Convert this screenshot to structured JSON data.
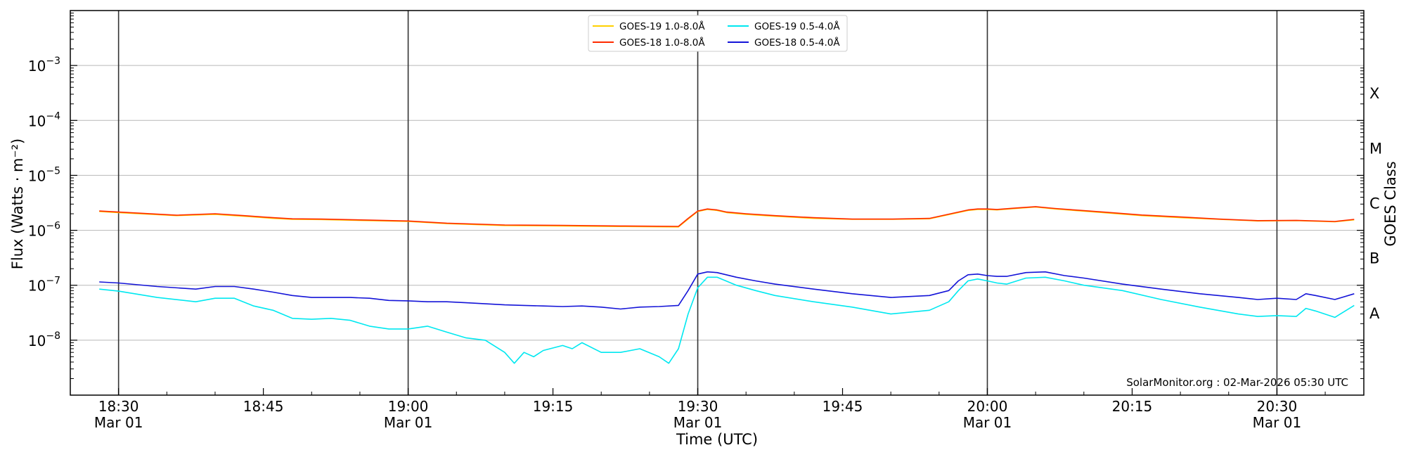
{
  "chart_data": {
    "type": "line",
    "title": "",
    "xlabel": "Time (UTC)",
    "ylabel": "Flux (Watts · m⁻²)",
    "right_label": "GOES Class",
    "credit": "SolarMonitor.org : 02-Mar-2026 05:30 UTC",
    "y_scale": "log",
    "ylim": [
      1e-09,
      0.01
    ],
    "x_range_minutes": [
      -5,
      129
    ],
    "grid": "horizontal at decades, vertical at each half hour",
    "legend_position": "top-center",
    "x_ticks": [
      {
        "minute": 0,
        "label": "18:30",
        "date": "Mar 01"
      },
      {
        "minute": 15,
        "label": "18:45",
        "date": ""
      },
      {
        "minute": 30,
        "label": "19:00",
        "date": "Mar 01"
      },
      {
        "minute": 45,
        "label": "19:15",
        "date": ""
      },
      {
        "minute": 60,
        "label": "19:30",
        "date": "Mar 01"
      },
      {
        "minute": 75,
        "label": "19:45",
        "date": ""
      },
      {
        "minute": 90,
        "label": "20:00",
        "date": "Mar 01"
      },
      {
        "minute": 105,
        "label": "20:15",
        "date": ""
      },
      {
        "minute": 120,
        "label": "20:30",
        "date": "Mar 01"
      }
    ],
    "y_ticks": [
      {
        "exp": -8,
        "label": "10",
        "sup": "−8"
      },
      {
        "exp": -7,
        "label": "10",
        "sup": "−7"
      },
      {
        "exp": -6,
        "label": "10",
        "sup": "−6"
      },
      {
        "exp": -5,
        "label": "10",
        "sup": "−5"
      },
      {
        "exp": -4,
        "label": "10",
        "sup": "−4"
      },
      {
        "exp": -3,
        "label": "10",
        "sup": "−3"
      }
    ],
    "goes_classes": [
      {
        "label": "A",
        "exp": -7.5
      },
      {
        "label": "B",
        "exp": -6.5
      },
      {
        "label": "C",
        "exp": -5.5
      },
      {
        "label": "M",
        "exp": -4.5
      },
      {
        "label": "X",
        "exp": -3.5
      }
    ],
    "series": [
      {
        "name": "GOES-19 1.0-8.0Å",
        "color": "#ffd000",
        "x": [
          -2,
          0,
          6,
          10,
          13,
          16,
          18,
          21,
          26,
          30,
          34,
          40,
          46,
          52,
          58,
          59,
          60,
          61,
          62,
          63,
          65,
          68,
          72,
          76,
          80,
          84,
          88,
          89,
          90,
          91,
          93,
          95,
          97,
          99,
          102,
          106,
          110,
          114,
          118,
          122,
          126,
          128
        ],
        "y": [
          2.2e-06,
          2.1e-06,
          1.85e-06,
          1.95e-06,
          1.8e-06,
          1.65e-06,
          1.58e-06,
          1.57e-06,
          1.5e-06,
          1.45e-06,
          1.32e-06,
          1.22e-06,
          1.2e-06,
          1.17e-06,
          1.15e-06,
          1.6e-06,
          2.2e-06,
          2.4e-06,
          2.3e-06,
          2.1e-06,
          1.95e-06,
          1.8e-06,
          1.65e-06,
          1.58e-06,
          1.58e-06,
          1.62e-06,
          2.3e-06,
          2.4e-06,
          2.4e-06,
          2.35e-06,
          2.5e-06,
          2.65e-06,
          2.45e-06,
          2.3e-06,
          2.1e-06,
          1.85e-06,
          1.7e-06,
          1.58e-06,
          1.48e-06,
          1.5e-06,
          1.43e-06,
          1.55e-06
        ]
      },
      {
        "name": "GOES-18 1.0-8.0Å",
        "color": "#ff2a00",
        "x": [
          -2,
          0,
          6,
          10,
          13,
          16,
          18,
          21,
          26,
          30,
          34,
          40,
          46,
          52,
          58,
          59,
          60,
          61,
          62,
          63,
          65,
          68,
          72,
          76,
          80,
          84,
          88,
          89,
          90,
          91,
          93,
          95,
          97,
          99,
          102,
          106,
          110,
          114,
          118,
          122,
          126,
          128
        ],
        "y": [
          2.25e-06,
          2.15e-06,
          1.88e-06,
          2e-06,
          1.85e-06,
          1.7e-06,
          1.62e-06,
          1.6e-06,
          1.53e-06,
          1.48e-06,
          1.35e-06,
          1.25e-06,
          1.23e-06,
          1.2e-06,
          1.18e-06,
          1.65e-06,
          2.25e-06,
          2.45e-06,
          2.35e-06,
          2.15e-06,
          2e-06,
          1.85e-06,
          1.7e-06,
          1.6e-06,
          1.6e-06,
          1.65e-06,
          2.35e-06,
          2.45e-06,
          2.45e-06,
          2.4e-06,
          2.55e-06,
          2.7e-06,
          2.5e-06,
          2.35e-06,
          2.15e-06,
          1.9e-06,
          1.75e-06,
          1.6e-06,
          1.5e-06,
          1.52e-06,
          1.45e-06,
          1.58e-06
        ]
      },
      {
        "name": "GOES-19 0.5-4.0Å",
        "color": "#00e8f0",
        "x": [
          -2,
          0,
          4,
          8,
          10,
          12,
          14,
          16,
          18,
          20,
          22,
          24,
          26,
          28,
          30,
          32,
          34,
          36,
          38,
          40,
          41,
          42,
          43,
          44,
          46,
          47,
          48,
          50,
          52,
          54,
          56,
          57,
          58,
          59,
          60,
          61,
          62,
          64,
          66,
          68,
          72,
          76,
          80,
          84,
          86,
          87,
          88,
          89,
          90,
          91,
          92,
          94,
          96,
          98,
          100,
          104,
          108,
          112,
          116,
          118,
          120,
          122,
          123,
          124,
          126,
          128
        ],
        "y": [
          8.5e-08,
          7.8e-08,
          6e-08,
          5e-08,
          5.8e-08,
          5.8e-08,
          4.2e-08,
          3.5e-08,
          2.5e-08,
          2.4e-08,
          2.5e-08,
          2.3e-08,
          1.8e-08,
          1.6e-08,
          1.6e-08,
          1.8e-08,
          1.4e-08,
          1.1e-08,
          1e-08,
          6e-09,
          3.8e-09,
          6e-09,
          5e-09,
          6.5e-09,
          8e-09,
          7e-09,
          9e-09,
          6e-09,
          6e-09,
          7e-09,
          5e-09,
          3.8e-09,
          7e-09,
          3e-08,
          9e-08,
          1.4e-07,
          1.4e-07,
          1e-07,
          8e-08,
          6.5e-08,
          5e-08,
          4e-08,
          3e-08,
          3.5e-08,
          5e-08,
          8e-08,
          1.2e-07,
          1.3e-07,
          1.2e-07,
          1.1e-07,
          1.05e-07,
          1.35e-07,
          1.4e-07,
          1.2e-07,
          1e-07,
          8e-08,
          5.5e-08,
          4e-08,
          3e-08,
          2.7e-08,
          2.8e-08,
          2.7e-08,
          3.8e-08,
          3.4e-08,
          2.6e-08,
          4.3e-08
        ]
      },
      {
        "name": "GOES-18 0.5-4.0Å",
        "color": "#1414d8",
        "x": [
          -2,
          0,
          4,
          8,
          10,
          12,
          14,
          16,
          18,
          20,
          22,
          24,
          26,
          28,
          30,
          32,
          34,
          36,
          38,
          40,
          42,
          44,
          46,
          48,
          50,
          52,
          54,
          56,
          58,
          59,
          60,
          61,
          62,
          64,
          66,
          68,
          72,
          76,
          80,
          84,
          86,
          87,
          88,
          89,
          90,
          91,
          92,
          94,
          96,
          98,
          100,
          104,
          108,
          112,
          116,
          118,
          120,
          122,
          123,
          124,
          126,
          128
        ],
        "y": [
          1.15e-07,
          1.1e-07,
          9.5e-08,
          8.5e-08,
          9.5e-08,
          9.5e-08,
          8.5e-08,
          7.5e-08,
          6.5e-08,
          6e-08,
          6e-08,
          6e-08,
          5.8e-08,
          5.3e-08,
          5.2e-08,
          5e-08,
          5e-08,
          4.8e-08,
          4.6e-08,
          4.4e-08,
          4.3e-08,
          4.2e-08,
          4.1e-08,
          4.2e-08,
          4e-08,
          3.7e-08,
          4e-08,
          4.1e-08,
          4.3e-08,
          8e-08,
          1.6e-07,
          1.75e-07,
          1.7e-07,
          1.4e-07,
          1.2e-07,
          1.05e-07,
          8.5e-08,
          7e-08,
          6e-08,
          6.5e-08,
          8e-08,
          1.2e-07,
          1.55e-07,
          1.6e-07,
          1.5e-07,
          1.45e-07,
          1.45e-07,
          1.7e-07,
          1.75e-07,
          1.5e-07,
          1.35e-07,
          1.05e-07,
          8.5e-08,
          7e-08,
          6e-08,
          5.5e-08,
          5.8e-08,
          5.5e-08,
          7e-08,
          6.5e-08,
          5.5e-08,
          7e-08
        ]
      }
    ]
  }
}
